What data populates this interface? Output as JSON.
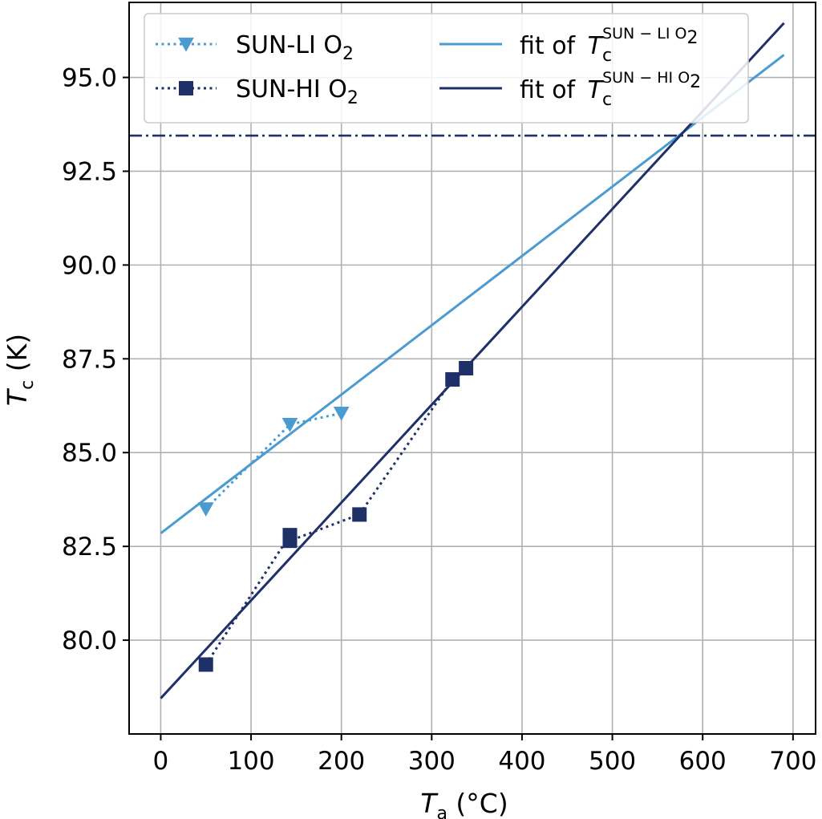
{
  "chart_data": {
    "type": "line",
    "xlabel": {
      "main": "T",
      "sub": "a",
      "rest": " (°C)"
    },
    "ylabel": {
      "main": "T",
      "sub": "c",
      "rest": " (K)"
    },
    "xlim": [
      -35,
      725
    ],
    "ylim": [
      77.5,
      97.0
    ],
    "xticks": [
      0,
      100,
      200,
      300,
      400,
      500,
      600,
      700
    ],
    "xtick_labels": [
      "0",
      "100",
      "200",
      "300",
      "400",
      "500",
      "600",
      "700"
    ],
    "yticks": [
      80.0,
      82.5,
      85.0,
      87.5,
      90.0,
      92.5,
      95.0
    ],
    "ytick_labels": [
      "80.0",
      "82.5",
      "85.0",
      "87.5",
      "90.0",
      "92.5",
      "95.0"
    ],
    "grid": true,
    "legend_position": "top",
    "series": [
      {
        "name": "SUN-LI O",
        "name_sub": "2",
        "style": "dotted-triangle-down",
        "color": "#4a9bd0",
        "x": [
          50,
          143,
          200
        ],
        "y": [
          83.5,
          85.75,
          86.05
        ]
      },
      {
        "name": "SUN-HI O",
        "name_sub": "2",
        "style": "dotted-square",
        "color": "#1f3068",
        "x": [
          50,
          143,
          143,
          220,
          323,
          338
        ],
        "y": [
          79.35,
          82.8,
          82.65,
          83.35,
          86.95,
          87.25
        ]
      }
    ],
    "fits": [
      {
        "label_prefix": "fit of ",
        "label_main": "T",
        "label_sub": "c",
        "label_sup": "SUN − LI O",
        "label_sup_sub": "2",
        "color": "#4a9bd0",
        "x": [
          0,
          690
        ],
        "y": [
          82.85,
          95.6
        ]
      },
      {
        "label_prefix": "fit of ",
        "label_main": "T",
        "label_sub": "c",
        "label_sup": "SUN − HI O",
        "label_sup_sub": "2",
        "color": "#1f3068",
        "x": [
          0,
          690
        ],
        "y": [
          78.45,
          96.45
        ]
      }
    ],
    "hline": {
      "y": 93.45,
      "style": "dashdot",
      "color": "#1f3068"
    }
  }
}
